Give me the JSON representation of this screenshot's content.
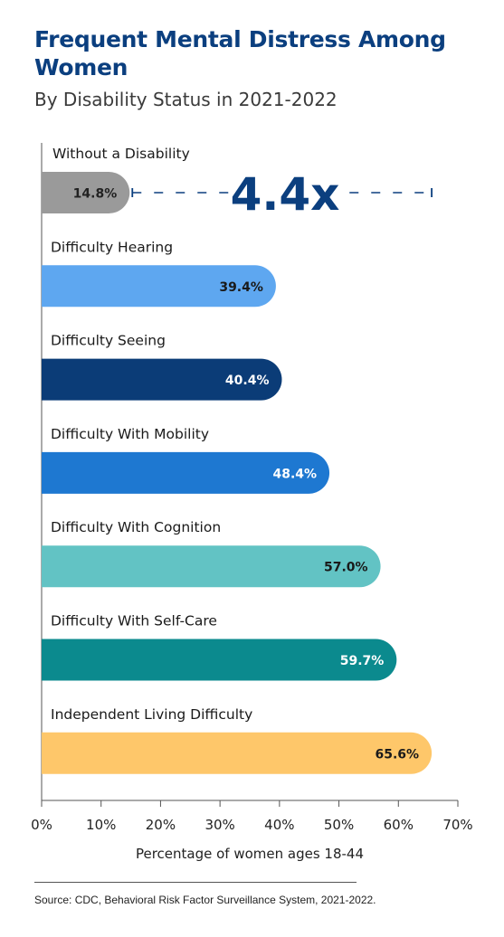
{
  "title": "Frequent Mental Distress Among Women",
  "subtitle": "By Disability Status in 2021-2022",
  "source": "Source: CDC, Behavioral Risk Factor Surveillance System, 2021-2022.",
  "annotation": {
    "text": "4.4x",
    "from_category": "Without a Disability",
    "to_value": 65.6
  },
  "chart_data": {
    "type": "bar",
    "orientation": "horizontal",
    "title": "Frequent Mental Distress Among Women",
    "subtitle": "By Disability Status in 2021-2022",
    "categories": [
      "Without a Disability",
      "Difficulty Hearing",
      "Difficulty Seeing",
      "Difficulty With Mobility",
      "Difficulty With Cognition",
      "Difficulty With Self-Care",
      "Independent Living Difficulty"
    ],
    "values": [
      14.8,
      39.4,
      40.4,
      48.4,
      57.0,
      59.7,
      65.6
    ],
    "value_labels": [
      "14.8%",
      "39.4%",
      "40.4%",
      "48.4%",
      "57.0%",
      "59.7%",
      "65.6%"
    ],
    "colors": [
      "#9a9a9a",
      "#5ea7f0",
      "#0b3c77",
      "#1e78d1",
      "#62c3c4",
      "#0b8a8e",
      "#fec76a"
    ],
    "label_colors": [
      "#222222",
      "#1a1a1a",
      "#ffffff",
      "#ffffff",
      "#1a1a1a",
      "#ffffff",
      "#1a1a1a"
    ],
    "xlabel": "Percentage of women ages 18-44",
    "xlim": [
      0,
      70
    ],
    "xticks": [
      0,
      10,
      20,
      30,
      40,
      50,
      60,
      70
    ],
    "xtick_labels": [
      "0%",
      "10%",
      "20%",
      "30%",
      "40%",
      "50%",
      "60%",
      "70%"
    ],
    "grid": false,
    "legend": "none"
  }
}
